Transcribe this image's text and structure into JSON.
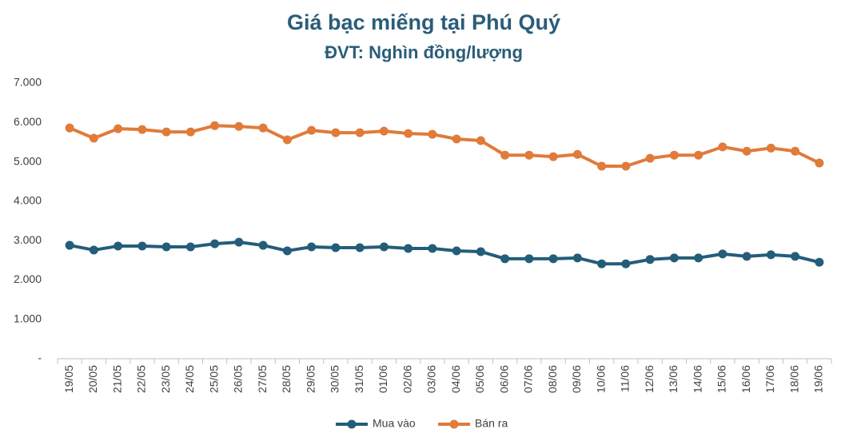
{
  "chart_data": {
    "type": "line",
    "title": "Giá bạc miếng tại Phú Quý",
    "subtitle": "ĐVT: Nghìn đồng/lượng",
    "categories": [
      "19/05",
      "20/05",
      "21/05",
      "22/05",
      "23/05",
      "24/05",
      "25/05",
      "26/05",
      "27/05",
      "28/05",
      "29/05",
      "30/05",
      "31/05",
      "01/06",
      "02/06",
      "03/06",
      "04/06",
      "05/06",
      "06/06",
      "07/06",
      "08/06",
      "09/06",
      "10/06",
      "11/06",
      "12/06",
      "13/06",
      "14/06",
      "15/06",
      "16/06",
      "17/06",
      "18/06",
      "19/06"
    ],
    "series": [
      {
        "name": "Mua vào",
        "color": "#245d7a",
        "values": [
          2880,
          2760,
          2860,
          2860,
          2840,
          2840,
          2920,
          2960,
          2880,
          2740,
          2840,
          2820,
          2820,
          2840,
          2800,
          2800,
          2740,
          2720,
          2540,
          2540,
          2540,
          2560,
          2410,
          2410,
          2520,
          2560,
          2560,
          2660,
          2600,
          2640,
          2600,
          2450
        ]
      },
      {
        "name": "Bán ra",
        "color": "#e07b3a",
        "values": [
          5860,
          5600,
          5840,
          5820,
          5760,
          5760,
          5920,
          5900,
          5860,
          5560,
          5800,
          5740,
          5740,
          5780,
          5720,
          5700,
          5580,
          5540,
          5170,
          5170,
          5130,
          5190,
          4890,
          4890,
          5090,
          5170,
          5170,
          5380,
          5270,
          5350,
          5270,
          4970
        ]
      }
    ],
    "ylim": [
      0,
      7000
    ],
    "yticks": [
      {
        "value": 0,
        "label": "-"
      },
      {
        "value": 1000,
        "label": "1.000"
      },
      {
        "value": 2000,
        "label": "2.000"
      },
      {
        "value": 3000,
        "label": "3.000"
      },
      {
        "value": 4000,
        "label": "4.000"
      },
      {
        "value": 5000,
        "label": "5.000"
      },
      {
        "value": 6000,
        "label": "6.000"
      },
      {
        "value": 7000,
        "label": "7.000"
      }
    ],
    "grid": false,
    "legend": "bottom"
  }
}
